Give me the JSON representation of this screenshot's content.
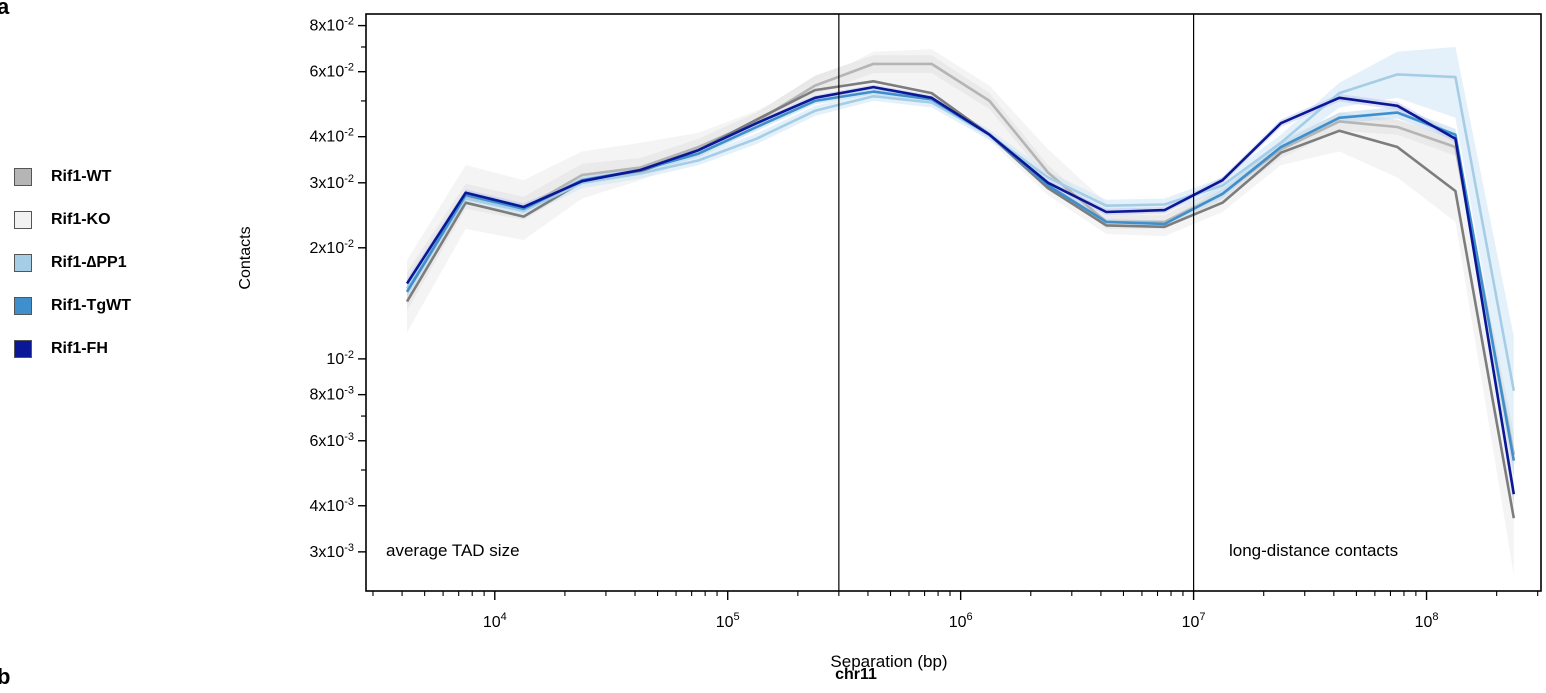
{
  "panel_labels": {
    "top": "a",
    "bottom": "b"
  },
  "subtitle": "chr11",
  "legend": [
    {
      "label": "Rif1-WT",
      "color": "#b5b5b5"
    },
    {
      "label": "Rif1-KO",
      "color": "#f2f2f2"
    },
    {
      "label": "Rif1-∆PP1",
      "color": "#a6cde6"
    },
    {
      "label": "Rif1-TgWT",
      "color": "#3f8fcc"
    },
    {
      "label": "Rif1-FH",
      "color": "#0a1796"
    }
  ],
  "chart_data": {
    "type": "line",
    "xlabel": "Separation (bp)",
    "ylabel": "Contacts",
    "xscale": "log",
    "yscale": "log",
    "xlim": [
      2800,
      310000000
    ],
    "ylim": [
      0.00235,
      0.086
    ],
    "x_ticks": [
      {
        "value": 10000,
        "base": "10",
        "exp": "4"
      },
      {
        "value": 100000,
        "base": "10",
        "exp": "5"
      },
      {
        "value": 1000000,
        "base": "10",
        "exp": "6"
      },
      {
        "value": 10000000,
        "base": "10",
        "exp": "7"
      },
      {
        "value": 100000000,
        "base": "10",
        "exp": "8"
      }
    ],
    "y_ticks": [
      {
        "value": 0.003,
        "mant": "3x10",
        "exp": "-3"
      },
      {
        "value": 0.004,
        "mant": "4x10",
        "exp": "-3"
      },
      {
        "value": 0.006,
        "mant": "6x10",
        "exp": "-3"
      },
      {
        "value": 0.008,
        "mant": "8x10",
        "exp": "-3"
      },
      {
        "value": 0.01,
        "mant": "10",
        "exp": "-2"
      },
      {
        "value": 0.02,
        "mant": "2x10",
        "exp": "-2"
      },
      {
        "value": 0.03,
        "mant": "3x10",
        "exp": "-2"
      },
      {
        "value": 0.04,
        "mant": "4x10",
        "exp": "-2"
      },
      {
        "value": 0.06,
        "mant": "6x10",
        "exp": "-2"
      },
      {
        "value": 0.08,
        "mant": "8x10",
        "exp": "-2"
      }
    ],
    "y_minor_ticks": [
      0.005,
      0.007,
      0.05,
      0.07
    ],
    "vlines": [
      300000,
      10000000
    ],
    "annotations": [
      "average TAD size",
      "long-distance contacts"
    ],
    "x": [
      4200,
      7500,
      13300,
      23700,
      42200,
      75000,
      133000,
      237000,
      422000,
      750000,
      1330000,
      2370000,
      4220000,
      7500000,
      13300000,
      23700000,
      42200000,
      75000000,
      133000000,
      237000000
    ],
    "series": [
      {
        "name": "Rif1-WT",
        "color": "#b5b5b5",
        "values": [
          0.0152,
          0.0275,
          0.0255,
          0.0315,
          0.033,
          0.0375,
          0.044,
          0.055,
          0.063,
          0.063,
          0.05,
          0.032,
          0.0235,
          0.0235,
          0.028,
          0.037,
          0.044,
          0.0425,
          0.0375,
          0.0055
        ],
        "lower": [
          0.0135,
          0.0255,
          0.0238,
          0.0295,
          0.0315,
          0.0355,
          0.042,
          0.052,
          0.0595,
          0.0595,
          0.0475,
          0.0305,
          0.0225,
          0.0225,
          0.0265,
          0.035,
          0.0415,
          0.0405,
          0.0355,
          0.0048
        ],
        "upper": [
          0.0172,
          0.0298,
          0.0275,
          0.0338,
          0.035,
          0.0395,
          0.0465,
          0.0585,
          0.0665,
          0.0665,
          0.0525,
          0.0335,
          0.0245,
          0.0245,
          0.0295,
          0.039,
          0.0465,
          0.0445,
          0.0395,
          0.0063
        ]
      },
      {
        "name": "Rif1-KO",
        "color": "#7d7d7d",
        "band": "#ebebeb",
        "values": [
          0.0143,
          0.0265,
          0.0243,
          0.0302,
          0.0322,
          0.0368,
          0.0445,
          0.0535,
          0.0565,
          0.0525,
          0.0405,
          0.029,
          0.023,
          0.0228,
          0.0265,
          0.0362,
          0.0415,
          0.0375,
          0.0285,
          0.0037
        ],
        "lower": [
          0.0118,
          0.0225,
          0.021,
          0.0272,
          0.0305,
          0.0355,
          0.043,
          0.051,
          0.054,
          0.05,
          0.039,
          0.0278,
          0.0218,
          0.0215,
          0.025,
          0.0335,
          0.0365,
          0.031,
          0.0235,
          0.0026
        ],
        "upper": [
          0.0185,
          0.0335,
          0.0305,
          0.0365,
          0.0385,
          0.041,
          0.047,
          0.0565,
          0.068,
          0.069,
          0.055,
          0.037,
          0.0265,
          0.025,
          0.029,
          0.0385,
          0.0445,
          0.0435,
          0.0355,
          0.0052
        ]
      },
      {
        "name": "Rif1-∆PP1",
        "color": "#a6cde6",
        "values": [
          0.0155,
          0.0272,
          0.0252,
          0.03,
          0.0318,
          0.0345,
          0.0395,
          0.047,
          0.0515,
          0.0495,
          0.0405,
          0.031,
          0.026,
          0.0262,
          0.0295,
          0.0385,
          0.0525,
          0.059,
          0.058,
          0.0082
        ],
        "lower": [
          0.0148,
          0.0262,
          0.0243,
          0.029,
          0.0308,
          0.0335,
          0.0382,
          0.0455,
          0.05,
          0.048,
          0.0392,
          0.0298,
          0.025,
          0.0252,
          0.0282,
          0.0365,
          0.048,
          0.051,
          0.045,
          0.0058
        ],
        "upper": [
          0.0163,
          0.0283,
          0.0262,
          0.031,
          0.0328,
          0.0356,
          0.0408,
          0.0485,
          0.053,
          0.051,
          0.0418,
          0.0322,
          0.027,
          0.0272,
          0.031,
          0.0405,
          0.056,
          0.068,
          0.07,
          0.0115
        ]
      },
      {
        "name": "Rif1-TgWT",
        "color": "#3f8fcc",
        "values": [
          0.0152,
          0.0278,
          0.0255,
          0.0305,
          0.0325,
          0.036,
          0.0425,
          0.05,
          0.053,
          0.0505,
          0.0405,
          0.0295,
          0.0235,
          0.0232,
          0.028,
          0.0375,
          0.045,
          0.0465,
          0.0405,
          0.0053
        ],
        "lower": [
          0.0146,
          0.027,
          0.0248,
          0.0298,
          0.0318,
          0.0352,
          0.0415,
          0.049,
          0.052,
          0.0495,
          0.0397,
          0.0288,
          0.023,
          0.0227,
          0.0272,
          0.0365,
          0.0435,
          0.0448,
          0.039,
          0.0048
        ],
        "upper": [
          0.0158,
          0.0286,
          0.0262,
          0.0312,
          0.0332,
          0.0368,
          0.0435,
          0.051,
          0.054,
          0.0515,
          0.0413,
          0.0302,
          0.024,
          0.0237,
          0.0288,
          0.0385,
          0.0465,
          0.0482,
          0.042,
          0.0058
        ]
      },
      {
        "name": "Rif1-FH",
        "color": "#0a1796",
        "values": [
          0.016,
          0.0282,
          0.0258,
          0.0303,
          0.0325,
          0.0368,
          0.0435,
          0.051,
          0.0545,
          0.051,
          0.0405,
          0.03,
          0.025,
          0.0253,
          0.0305,
          0.0435,
          0.051,
          0.0485,
          0.0395,
          0.0043
        ],
        "lower": [
          0.0155,
          0.0276,
          0.0252,
          0.0298,
          0.032,
          0.0362,
          0.0428,
          0.0502,
          0.0537,
          0.0502,
          0.0398,
          0.0295,
          0.0245,
          0.0248,
          0.0299,
          0.0425,
          0.0498,
          0.0473,
          0.0385,
          0.004
        ],
        "upper": [
          0.0165,
          0.0288,
          0.0264,
          0.0308,
          0.033,
          0.0374,
          0.0442,
          0.0518,
          0.0553,
          0.0518,
          0.0412,
          0.0305,
          0.0255,
          0.0258,
          0.0311,
          0.0445,
          0.0522,
          0.0497,
          0.0405,
          0.0046
        ]
      }
    ]
  }
}
